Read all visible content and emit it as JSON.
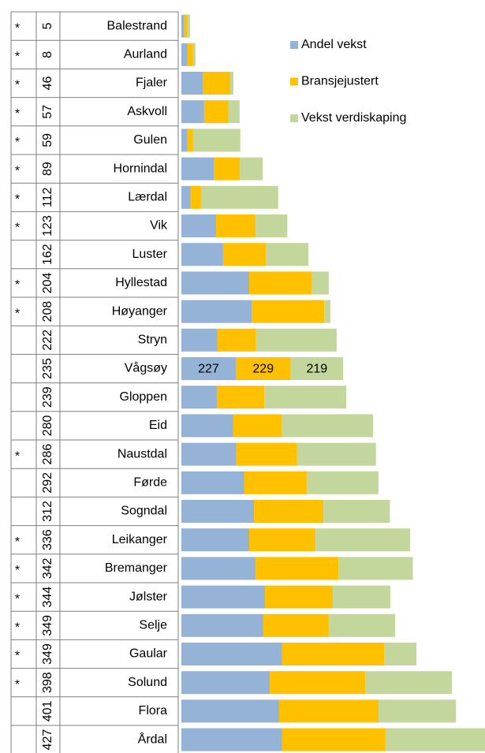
{
  "chart_data": {
    "type": "stacked-bar-table",
    "categories": [
      "Balestrand",
      "Aurland",
      "Fjaler",
      "Askvoll",
      "Gulen",
      "Hornindal",
      "Lærdal",
      "Vik",
      "Luster",
      "Hyllestad",
      "Høyanger",
      "Stryn",
      "Vågsøy",
      "Gloppen",
      "Eid",
      "Naustdal",
      "Førde",
      "Sogndal",
      "Leikanger",
      "Bremanger",
      "Jølster",
      "Selje",
      "Gaular",
      "Solund",
      "Flora",
      "Årdal"
    ],
    "ranks": [
      5,
      8,
      46,
      57,
      59,
      89,
      112,
      123,
      162,
      204,
      208,
      222,
      235,
      239,
      280,
      286,
      292,
      312,
      336,
      342,
      344,
      349,
      349,
      398,
      401,
      427
    ],
    "stars": [
      "*",
      "*",
      "*",
      "*",
      "*",
      "*",
      "*",
      "*",
      null,
      "*",
      "*",
      null,
      null,
      null,
      null,
      "*",
      null,
      null,
      "*",
      "*",
      "*",
      "*",
      "*",
      "*",
      null,
      null
    ],
    "series": [
      {
        "name": "Andel vekst",
        "color": "#95b3d7",
        "values": [
          10,
          26,
          89,
          95,
          23,
          135,
          39,
          145,
          174,
          283,
          293,
          151,
          227,
          148,
          217,
          230,
          263,
          303,
          283,
          310,
          349,
          342,
          421,
          369,
          408,
          421
        ],
        "value_labels": [
          null,
          null,
          null,
          null,
          null,
          null,
          null,
          null,
          null,
          null,
          null,
          null,
          "227",
          null,
          null,
          null,
          null,
          null,
          null,
          null,
          null,
          null,
          null,
          null,
          null,
          null
        ]
      },
      {
        "name": "Bransjejustert",
        "color": "#ffc000",
        "values": [
          13,
          23,
          115,
          102,
          26,
          109,
          43,
          165,
          178,
          260,
          303,
          161,
          229,
          198,
          201,
          253,
          260,
          290,
          277,
          346,
          283,
          273,
          425,
          398,
          415,
          431
        ],
        "value_labels": [
          null,
          null,
          null,
          null,
          null,
          null,
          null,
          null,
          null,
          null,
          null,
          null,
          "229",
          null,
          null,
          null,
          null,
          null,
          null,
          null,
          null,
          null,
          null,
          null,
          null,
          null
        ]
      },
      {
        "name": "Vekst verdiskaping",
        "color": "#c3d69b",
        "values": [
          13,
          10,
          13,
          46,
          197,
          95,
          322,
          132,
          178,
          72,
          26,
          336,
          219,
          342,
          382,
          329,
          300,
          277,
          395,
          310,
          240,
          277,
          135,
          362,
          323,
          415
        ],
        "value_labels": [
          null,
          null,
          null,
          null,
          null,
          null,
          null,
          null,
          null,
          null,
          null,
          null,
          "219",
          null,
          null,
          null,
          null,
          null,
          null,
          null,
          null,
          null,
          null,
          null,
          null,
          null
        ]
      }
    ],
    "legend": "top-right"
  }
}
